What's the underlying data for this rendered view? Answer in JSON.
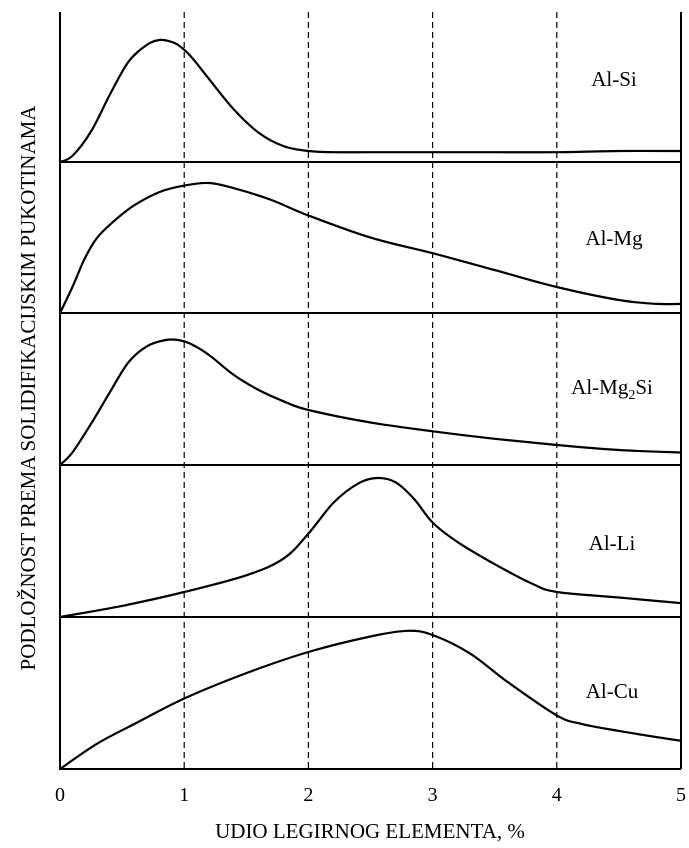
{
  "chart_data": {
    "type": "line",
    "xlabel": "UDIO LEGIRNOG ELEMENTA, %",
    "ylabel": "PODLOŽNOST PREMA SOLIDIFIKACIJSKIM PUKOTINAMA",
    "xlim": [
      0,
      5
    ],
    "xticks": [
      "0",
      "1",
      "2",
      "3",
      "4",
      "5"
    ],
    "grid": "vertical dashed at x = 1, 2, 3, 4",
    "layout": "five stacked panels sharing one x-axis",
    "series": [
      {
        "name": "Al-Si",
        "name_parts": [
          "Al-Si"
        ],
        "x": [
          0,
          0.1,
          0.25,
          0.4,
          0.55,
          0.7,
          0.8,
          0.88,
          0.95,
          1.05,
          1.2,
          1.4,
          1.6,
          1.8,
          2.0,
          2.2,
          2.5,
          3.0,
          3.5,
          4.0,
          4.5,
          5.0
        ],
        "y": [
          0.0,
          0.05,
          0.25,
          0.55,
          0.82,
          0.96,
          1.0,
          0.99,
          0.96,
          0.87,
          0.68,
          0.43,
          0.24,
          0.13,
          0.09,
          0.08,
          0.08,
          0.08,
          0.08,
          0.08,
          0.09,
          0.09
        ]
      },
      {
        "name": "Al-Mg",
        "name_parts": [
          "Al-Mg"
        ],
        "x": [
          0,
          0.1,
          0.2,
          0.3,
          0.45,
          0.6,
          0.8,
          1.0,
          1.2,
          1.4,
          1.7,
          2.0,
          2.5,
          3.0,
          3.5,
          4.0,
          4.5,
          4.8,
          5.0
        ],
        "y": [
          0.0,
          0.2,
          0.42,
          0.58,
          0.72,
          0.83,
          0.93,
          0.98,
          1.0,
          0.96,
          0.87,
          0.75,
          0.58,
          0.46,
          0.33,
          0.2,
          0.1,
          0.07,
          0.07
        ]
      },
      {
        "name": "Al-Mg2Si",
        "name_parts": [
          "Al-Mg",
          "2",
          "Si"
        ],
        "x": [
          0,
          0.1,
          0.25,
          0.4,
          0.55,
          0.7,
          0.85,
          0.95,
          1.05,
          1.2,
          1.4,
          1.6,
          1.8,
          2.0,
          2.5,
          3.0,
          3.5,
          4.0,
          4.5,
          5.0
        ],
        "y": [
          0.0,
          0.1,
          0.33,
          0.58,
          0.82,
          0.95,
          1.0,
          1.0,
          0.97,
          0.88,
          0.72,
          0.6,
          0.51,
          0.44,
          0.34,
          0.27,
          0.21,
          0.16,
          0.12,
          0.1
        ]
      },
      {
        "name": "Al-Li",
        "name_parts": [
          "Al-Li"
        ],
        "x": [
          0,
          0.5,
          1.0,
          1.5,
          1.8,
          2.0,
          2.2,
          2.4,
          2.55,
          2.7,
          2.85,
          3.0,
          3.2,
          3.5,
          3.8,
          4.0,
          4.5,
          5.0
        ],
        "y": [
          0.0,
          0.08,
          0.18,
          0.3,
          0.42,
          0.6,
          0.82,
          0.96,
          1.0,
          0.97,
          0.85,
          0.68,
          0.54,
          0.38,
          0.24,
          0.18,
          0.14,
          0.1
        ]
      },
      {
        "name": "Al-Cu",
        "name_parts": [
          "Al-Cu"
        ],
        "x": [
          0,
          0.3,
          0.6,
          1.0,
          1.5,
          2.0,
          2.5,
          2.8,
          3.0,
          3.3,
          3.6,
          4.0,
          4.2,
          4.5,
          5.0
        ],
        "y": [
          0.0,
          0.18,
          0.32,
          0.5,
          0.68,
          0.83,
          0.94,
          0.98,
          0.95,
          0.82,
          0.62,
          0.38,
          0.32,
          0.27,
          0.2
        ]
      }
    ]
  }
}
